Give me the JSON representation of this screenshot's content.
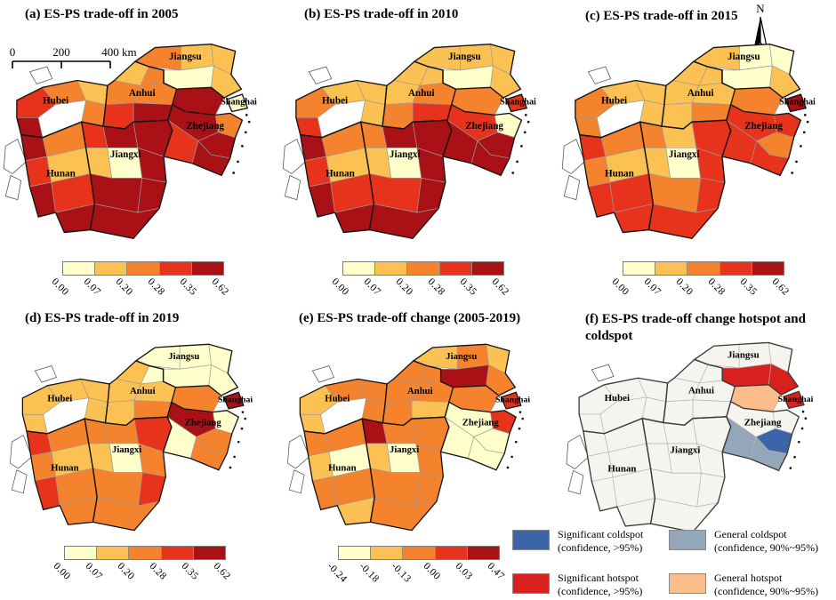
{
  "figure": {
    "north_label": "N"
  },
  "colors": {
    "ramp": [
      "#FFFFCC",
      "#FCC153",
      "#F5822D",
      "#E8331C",
      "#A91117"
    ],
    "no_data": "#FFFFFF",
    "hotspot": {
      "none": "#F5F4EF",
      "sig_hot": "#D8201E",
      "gen_hot": "#FBBE8B",
      "sig_cold": "#3C64A8",
      "gen_cold": "#94A7BA"
    }
  },
  "province_labels": [
    "Jiangsu",
    "Anhui",
    "Shanghai",
    "Hubei",
    "Zhejiang",
    "Jiangxi",
    "Hunan"
  ],
  "scalebar": {
    "ticks": [
      "0",
      "200",
      "400"
    ],
    "unit": "km"
  },
  "panels": [
    {
      "id": "a",
      "title": "(a) ES-PS trade-off in 2005",
      "legend_ticks": [
        "0.00",
        "0.07",
        "0.20",
        "0.28",
        "0.35",
        "0.62"
      ],
      "cells": [
        3,
        2,
        1,
        4,
        -1,
        2,
        4,
        2,
        3,
        1,
        4,
        3,
        4,
        3,
        4,
        4,
        1,
        0,
        4,
        4,
        4,
        4,
        1,
        2,
        2,
        2,
        4,
        3,
        2,
        1,
        1,
        0,
        1,
        0,
        4,
        2,
        4,
        4,
        3,
        4
      ]
    },
    {
      "id": "b",
      "title": "(b) ES-PS trade-off in 2010",
      "legend_ticks": [
        "0.00",
        "0.07",
        "0.20",
        "0.28",
        "0.35",
        "0.62"
      ],
      "cells": [
        2,
        1,
        1,
        3,
        -1,
        1,
        4,
        2,
        3,
        1,
        4,
        3,
        4,
        2,
        4,
        4,
        1,
        0,
        4,
        3,
        4,
        4,
        1,
        1,
        1,
        2,
        3,
        2,
        1,
        1,
        1,
        0,
        1,
        3,
        2,
        0,
        3,
        4,
        4,
        4
      ]
    },
    {
      "id": "c",
      "title": "(c) ES-PS trade-off in 2015",
      "legend_ticks": [
        "0.00",
        "0.07",
        "0.20",
        "0.28",
        "0.35",
        "0.62"
      ],
      "cells": [
        2,
        1,
        1,
        2,
        -1,
        1,
        3,
        2,
        2,
        1,
        3,
        3,
        3,
        2,
        1,
        3,
        1,
        0,
        3,
        2,
        3,
        3,
        1,
        1,
        1,
        1,
        2,
        1,
        1,
        0,
        0,
        0,
        1,
        4,
        2,
        3,
        3,
        2,
        3,
        3
      ]
    },
    {
      "id": "d",
      "title": "(d) ES-PS trade-off in 2019",
      "legend_ticks": [
        "0.00",
        "0.07",
        "0.20",
        "0.28",
        "0.35",
        "0.62"
      ],
      "cells": [
        1,
        1,
        1,
        1,
        -1,
        1,
        3,
        2,
        2,
        1,
        3,
        2,
        2,
        2,
        2,
        3,
        1,
        0,
        2,
        2,
        3,
        2,
        1,
        0,
        1,
        1,
        2,
        1,
        0,
        0,
        0,
        0,
        0,
        4,
        2,
        0,
        4,
        2,
        0,
        2
      ]
    },
    {
      "id": "e",
      "title": "(e) ES-PS trade-off change (2005-2019)",
      "legend_ticks": [
        "-0.24",
        "-0.18",
        "-0.13",
        "0.00",
        "0.03",
        "0.47"
      ],
      "cells": [
        1,
        2,
        2,
        1,
        -1,
        2,
        2,
        2,
        1,
        0,
        2,
        2,
        1,
        4,
        2,
        2,
        1,
        0,
        2,
        2,
        2,
        2,
        2,
        2,
        2,
        2,
        1,
        2,
        1,
        2,
        1,
        4,
        2,
        3,
        2,
        3,
        0,
        0,
        0,
        0
      ]
    },
    {
      "id": "f",
      "title": "(f) ES-PS trade-off change hotspot and coldspot",
      "cells": [
        "none",
        "none",
        "none",
        "none",
        "none",
        "none",
        "none",
        "none",
        "none",
        "none",
        "none",
        "none",
        "none",
        "none",
        "none",
        "none",
        "none",
        "none",
        "none",
        "none",
        "none",
        "none",
        "none",
        "none",
        "none",
        "none",
        "none",
        "none",
        "none",
        "none",
        "none",
        "sig_hot",
        "sig_hot",
        "sig_hot",
        "gen_hot",
        "none",
        "none",
        "sig_cold",
        "gen_cold",
        "gen_cold"
      ]
    }
  ],
  "hotspot_legend": [
    {
      "class": "sig_cold",
      "line1": "Significant coldspot",
      "line2": "(confidence, >95%)"
    },
    {
      "class": "gen_cold",
      "line1": "General coldspot",
      "line2": "(confidence, 90%~95%)"
    },
    {
      "class": "sig_hot",
      "line1": "Significant hotspot",
      "line2": "(confidence, >95%)"
    },
    {
      "class": "gen_hot",
      "line1": "General hotspot",
      "line2": "(confidence, 90%~95%)"
    }
  ]
}
